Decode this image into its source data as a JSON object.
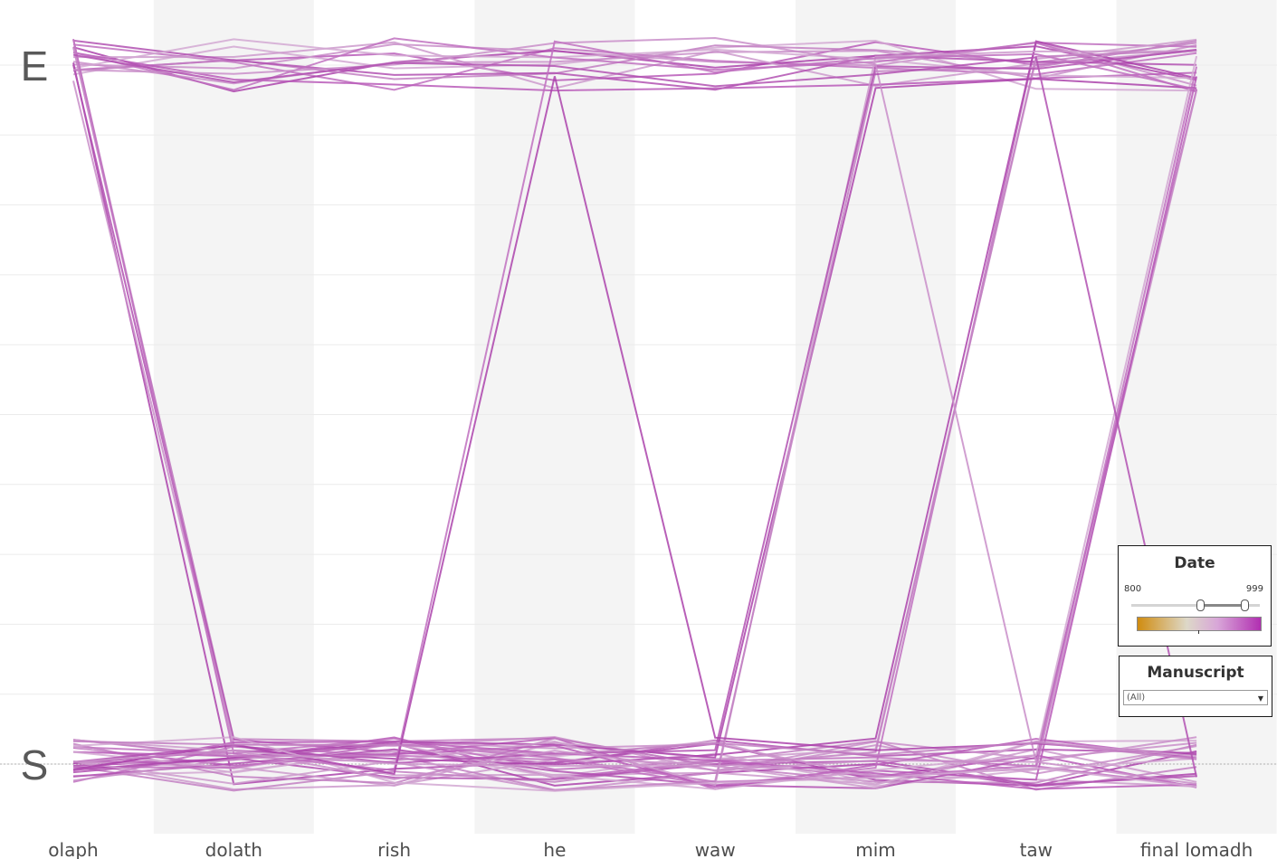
{
  "chart_data": {
    "type": "line",
    "categories": [
      "olaph",
      "dolath",
      "rish",
      "he",
      "waw",
      "mim",
      "taw",
      "final lomadh"
    ],
    "y_levels": [
      "E",
      "S"
    ],
    "grid": true,
    "legend": "right",
    "color_range": [
      "#d08c10",
      "#b12fb1"
    ],
    "series": [
      {
        "values": [
          "E",
          "E",
          "E",
          "E",
          "E",
          "E",
          "E",
          "E"
        ]
      },
      {
        "values": [
          "E",
          "E",
          "E",
          "E",
          "E",
          "E",
          "E",
          "E"
        ]
      },
      {
        "values": [
          "E",
          "E",
          "E",
          "E",
          "E",
          "E",
          "E",
          "E"
        ]
      },
      {
        "values": [
          "E",
          "E",
          "E",
          "E",
          "E",
          "E",
          "E",
          "E"
        ]
      },
      {
        "values": [
          "E",
          "E",
          "E",
          "E",
          "E",
          "E",
          "E",
          "E"
        ]
      },
      {
        "values": [
          "E",
          "E",
          "E",
          "E",
          "E",
          "E",
          "E",
          "E"
        ]
      },
      {
        "values": [
          "E",
          "E",
          "E",
          "E",
          "E",
          "E",
          "E",
          "E"
        ]
      },
      {
        "values": [
          "E",
          "E",
          "E",
          "E",
          "E",
          "E",
          "E",
          "E"
        ]
      },
      {
        "values": [
          "E",
          "E",
          "E",
          "E",
          "E",
          "E",
          "E",
          "E"
        ]
      },
      {
        "values": [
          "E",
          "E",
          "E",
          "E",
          "E",
          "E",
          "E",
          "E"
        ]
      },
      {
        "values": [
          "E",
          "E",
          "E",
          "E",
          "E",
          "E",
          "E",
          "E"
        ]
      },
      {
        "values": [
          "E",
          "E",
          "E",
          "E",
          "E",
          "E",
          "E",
          "E"
        ]
      },
      {
        "values": [
          "E",
          "S",
          "S",
          "S",
          "S",
          "S",
          "S",
          "S"
        ]
      },
      {
        "values": [
          "E",
          "S",
          "S",
          "S",
          "S",
          "S",
          "S",
          "S"
        ]
      },
      {
        "values": [
          "E",
          "S",
          "S",
          "S",
          "S",
          "S",
          "S",
          "S"
        ]
      },
      {
        "values": [
          "E",
          "S",
          "S",
          "S",
          "S",
          "S",
          "S",
          "S"
        ]
      },
      {
        "values": [
          "E",
          "S",
          "S",
          "S",
          "S",
          "S",
          "S",
          "S"
        ]
      },
      {
        "values": [
          "S",
          "S",
          "S",
          "S",
          "S",
          "S",
          "S",
          "S"
        ]
      },
      {
        "values": [
          "S",
          "S",
          "S",
          "S",
          "S",
          "S",
          "S",
          "S"
        ]
      },
      {
        "values": [
          "S",
          "S",
          "S",
          "S",
          "S",
          "S",
          "S",
          "S"
        ]
      },
      {
        "values": [
          "S",
          "S",
          "S",
          "S",
          "S",
          "S",
          "S",
          "S"
        ]
      },
      {
        "values": [
          "S",
          "S",
          "S",
          "S",
          "S",
          "S",
          "S",
          "S"
        ]
      },
      {
        "values": [
          "S",
          "S",
          "S",
          "S",
          "S",
          "S",
          "S",
          "S"
        ]
      },
      {
        "values": [
          "S",
          "S",
          "S",
          "S",
          "S",
          "S",
          "S",
          "S"
        ]
      },
      {
        "values": [
          "S",
          "S",
          "S",
          "S",
          "S",
          "S",
          "S",
          "S"
        ]
      },
      {
        "values": [
          "S",
          "S",
          "S",
          "S",
          "S",
          "S",
          "S",
          "S"
        ]
      },
      {
        "values": [
          "S",
          "S",
          "S",
          "S",
          "S",
          "S",
          "S",
          "S"
        ]
      },
      {
        "values": [
          "S",
          "S",
          "S",
          "S",
          "S",
          "S",
          "E",
          "E"
        ]
      },
      {
        "values": [
          "S",
          "S",
          "S",
          "S",
          "S",
          "S",
          "E",
          "E"
        ]
      },
      {
        "values": [
          "S",
          "S",
          "S",
          "S",
          "S",
          "S",
          "E",
          "E"
        ]
      },
      {
        "values": [
          "S",
          "S",
          "S",
          "S",
          "S",
          "S",
          "E",
          "E"
        ]
      },
      {
        "values": [
          "S",
          "S",
          "S",
          "S",
          "S",
          "S",
          "S",
          "E"
        ]
      },
      {
        "values": [
          "S",
          "S",
          "S",
          "S",
          "S",
          "S",
          "S",
          "E"
        ]
      },
      {
        "values": [
          "S",
          "S",
          "S",
          "S",
          "S",
          "S",
          "S",
          "E"
        ]
      },
      {
        "values": [
          "S",
          "S",
          "S",
          "S",
          "S",
          "S",
          "S",
          "E"
        ]
      },
      {
        "values": [
          "S",
          "S",
          "S",
          "S",
          "S",
          "S",
          "S",
          "E"
        ]
      },
      {
        "values": [
          "S",
          "S",
          "S",
          "S",
          "S",
          "E",
          "E",
          "E"
        ]
      },
      {
        "values": [
          "S",
          "S",
          "S",
          "S",
          "S",
          "E",
          "E",
          "E"
        ]
      },
      {
        "values": [
          "S",
          "S",
          "S",
          "S",
          "S",
          "E",
          "E",
          "E"
        ]
      },
      {
        "values": [
          "S",
          "S",
          "S",
          "S",
          "S",
          "E",
          "E",
          "E"
        ]
      },
      {
        "values": [
          "E",
          "E",
          "E",
          "E",
          "E",
          "E",
          "S",
          "S"
        ]
      },
      {
        "values": [
          "S",
          "S",
          "S",
          "S",
          "S",
          "S",
          "S",
          "S"
        ]
      },
      {
        "values": [
          "S",
          "S",
          "S",
          "S",
          "S",
          "S",
          "S",
          "S"
        ]
      },
      {
        "values": [
          "E",
          "S",
          "S",
          "E",
          "E",
          "E",
          "E",
          "E"
        ]
      },
      {
        "values": [
          "S",
          "S",
          "S",
          "E",
          "S",
          "S",
          "S",
          "S"
        ]
      },
      {
        "values": [
          "S",
          "S",
          "S",
          "S",
          "S",
          "S",
          "S",
          "S"
        ]
      },
      {
        "values": [
          "S",
          "S",
          "S",
          "S",
          "S",
          "S",
          "S",
          "S"
        ]
      },
      {
        "values": [
          "E",
          "E",
          "E",
          "E",
          "E",
          "E",
          "E",
          "S"
        ]
      },
      {
        "values": [
          "S",
          "S",
          "S",
          "S",
          "S",
          "S",
          "S",
          "S"
        ]
      }
    ]
  },
  "filters": {
    "date": {
      "title": "Date",
      "min_label": "800",
      "max_label": "999",
      "selected_range": [
        932,
        999
      ]
    },
    "manuscript": {
      "title": "Manuscript",
      "selected": "(All)"
    }
  }
}
